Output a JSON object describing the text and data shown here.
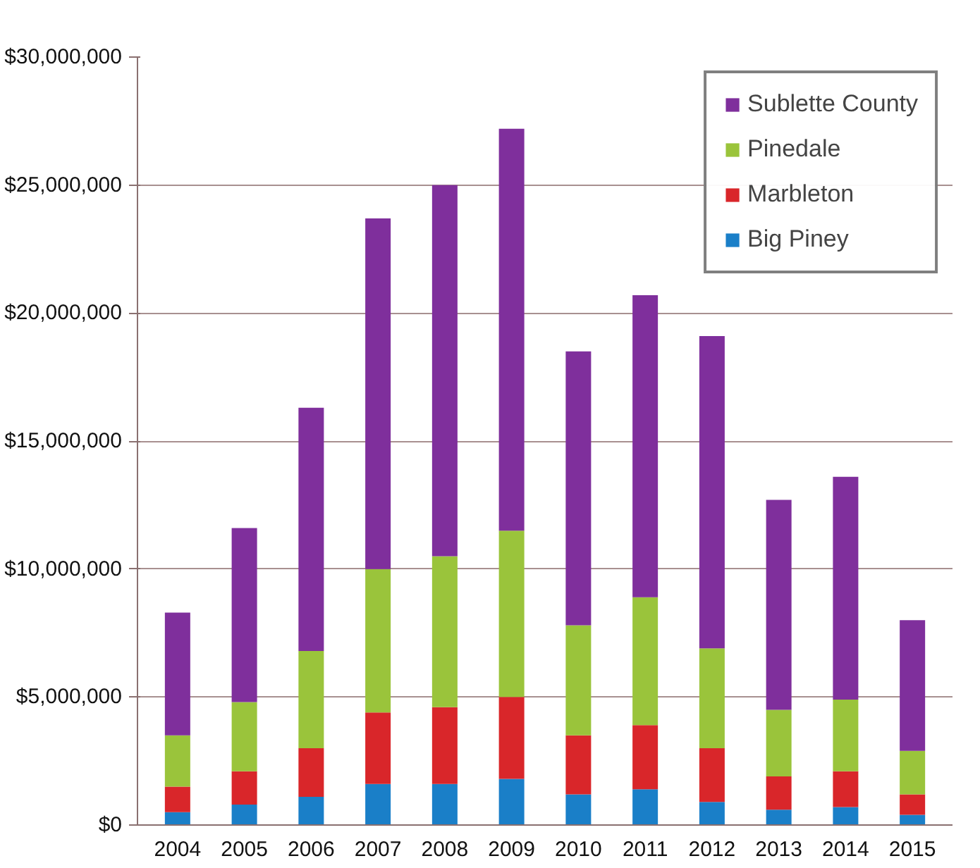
{
  "chart_data": {
    "type": "bar",
    "stacked": true,
    "categories": [
      "2004",
      "2005",
      "2006",
      "2007",
      "2008",
      "2009",
      "2010",
      "2011",
      "2012",
      "2013",
      "2014",
      "2015"
    ],
    "series": [
      {
        "name": "Big Piney",
        "color": "#1a7fc8",
        "values": [
          500000,
          800000,
          1100000,
          1600000,
          1600000,
          1800000,
          1200000,
          1400000,
          900000,
          600000,
          700000,
          400000
        ]
      },
      {
        "name": "Marbleton",
        "color": "#d9262a",
        "values": [
          1000000,
          1300000,
          1900000,
          2800000,
          3000000,
          3200000,
          2300000,
          2500000,
          2100000,
          1300000,
          1400000,
          800000
        ]
      },
      {
        "name": "Pinedale",
        "color": "#9ac43b",
        "values": [
          2000000,
          2700000,
          3800000,
          5600000,
          5900000,
          6500000,
          4300000,
          5000000,
          3900000,
          2600000,
          2800000,
          1700000
        ]
      },
      {
        "name": "Sublette County",
        "color": "#7f2f9c",
        "values": [
          4800000,
          6800000,
          9500000,
          13700000,
          14500000,
          15700000,
          10700000,
          11800000,
          12200000,
          8200000,
          8700000,
          5100000
        ]
      }
    ],
    "ylim": [
      0,
      30000000
    ],
    "yticks": [
      {
        "value": 0,
        "label": "$0"
      },
      {
        "value": 5000000,
        "label": "$5,000,000"
      },
      {
        "value": 10000000,
        "label": "$10,000,000"
      },
      {
        "value": 15000000,
        "label": "$15,000,000"
      },
      {
        "value": 20000000,
        "label": "$20,000,000"
      },
      {
        "value": 25000000,
        "label": "$25,000,000"
      },
      {
        "value": 30000000,
        "label": "$30,000,000"
      }
    ],
    "grid": "y",
    "legend": "top right"
  }
}
